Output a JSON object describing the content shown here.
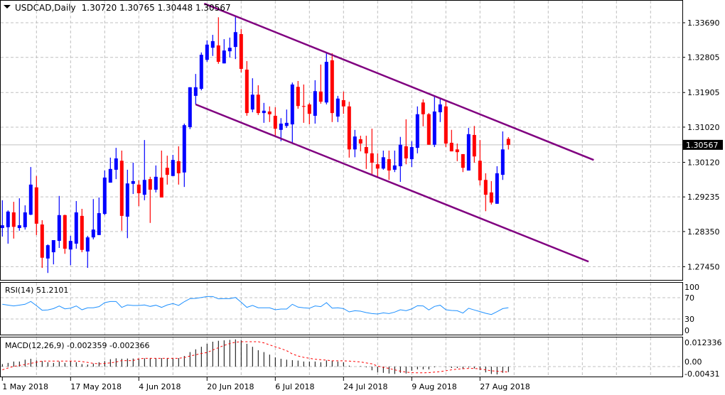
{
  "header": {
    "symbol": "USDCAD,Daily",
    "ohlc": "1.30720 1.30765 1.30448 1.30567"
  },
  "colors": {
    "bull": "#0000FF",
    "bear": "#FF0000",
    "channel": "#800080",
    "rsi": "#1E90FF",
    "macd_hist": "#000000",
    "macd_signal": "#FF0000",
    "grid": "#C0C0C0"
  },
  "chart_data": [
    {
      "type": "candlestick",
      "title": "USDCAD,Daily",
      "current_price": 1.30567,
      "current_price_label": "1.30567",
      "ylim": [
        1.271,
        1.342
      ],
      "y_ticks": [
        "1.33690",
        "1.32805",
        "1.31905",
        "1.31020",
        "1.30120",
        "1.29235",
        "1.28350",
        "1.27450"
      ],
      "x_ticks": [
        {
          "bar": 0,
          "label": "1 May 2018"
        },
        {
          "bar": 12,
          "label": "17 May 2018"
        },
        {
          "bar": 24,
          "label": "4 Jun 2018"
        },
        {
          "bar": 36,
          "label": "20 Jun 2018"
        },
        {
          "bar": 48,
          "label": "6 Jul 2018"
        },
        {
          "bar": 60,
          "label": "24 Jul 2018"
        },
        {
          "bar": 72,
          "label": "9 Aug 2018"
        },
        {
          "bar": 84,
          "label": "27 Aug 2018"
        }
      ],
      "ohlc_order": [
        "open",
        "high",
        "low",
        "close"
      ],
      "ohlc": [
        [
          1.2844,
          1.2915,
          1.2822,
          1.2851
        ],
        [
          1.2846,
          1.2889,
          1.2804,
          1.2886
        ],
        [
          1.2884,
          1.2911,
          1.2817,
          1.2847
        ],
        [
          1.2844,
          1.292,
          1.2837,
          1.2851
        ],
        [
          1.2846,
          1.2902,
          1.284,
          1.2884
        ],
        [
          1.2878,
          1.3,
          1.2877,
          1.2955
        ],
        [
          1.2948,
          1.2977,
          1.2826,
          1.2855
        ],
        [
          1.2853,
          1.2864,
          1.2742,
          1.2768
        ],
        [
          1.2766,
          1.2802,
          1.2729,
          1.28
        ],
        [
          1.2782,
          1.2813,
          1.2751,
          1.2813
        ],
        [
          1.2811,
          1.2926,
          1.2793,
          1.2877
        ],
        [
          1.2877,
          1.2878,
          1.2778,
          1.2791
        ],
        [
          1.2789,
          1.2824,
          1.2749,
          1.2811
        ],
        [
          1.2804,
          1.2913,
          1.2791,
          1.2884
        ],
        [
          1.2875,
          1.2893,
          1.2782,
          1.2788
        ],
        [
          1.2784,
          1.2824,
          1.2742,
          1.282
        ],
        [
          1.282,
          1.2918,
          1.2815,
          1.284
        ],
        [
          1.2826,
          1.2922,
          1.2826,
          1.2882
        ],
        [
          1.288,
          1.2991,
          1.2877,
          1.2973
        ],
        [
          1.296,
          1.3024,
          1.296,
          1.2995
        ],
        [
          1.2993,
          1.3049,
          1.2969,
          1.3022
        ],
        [
          1.3016,
          1.3042,
          1.2837,
          1.2875
        ],
        [
          1.2873,
          1.2993,
          1.2818,
          1.2958
        ],
        [
          1.2957,
          1.3011,
          1.2931,
          1.2964
        ],
        [
          1.2955,
          1.2966,
          1.29,
          1.2933
        ],
        [
          1.2929,
          1.3069,
          1.2915,
          1.2967
        ],
        [
          1.2969,
          1.2975,
          1.2857,
          1.2942
        ],
        [
          1.2942,
          1.3004,
          1.2935,
          1.2975
        ],
        [
          1.2973,
          1.3042,
          1.2922,
          1.2922
        ],
        [
          1.2998,
          1.3029,
          1.2955,
          1.298
        ],
        [
          1.2977,
          1.3031,
          1.2977,
          1.3018
        ],
        [
          1.3015,
          1.3053,
          1.2955,
          1.2984
        ],
        [
          1.2986,
          1.3111,
          1.2949,
          1.3107
        ],
        [
          1.3102,
          1.3204,
          1.3097,
          1.3204
        ],
        [
          1.3182,
          1.3238,
          1.316,
          1.3204
        ],
        [
          1.32,
          1.3293,
          1.3196,
          1.3287
        ],
        [
          1.3274,
          1.3324,
          1.3269,
          1.3313
        ],
        [
          1.3305,
          1.3338,
          1.3284,
          1.3322
        ],
        [
          1.3311,
          1.3383,
          1.3264,
          1.3269
        ],
        [
          1.3265,
          1.3327,
          1.3265,
          1.3298
        ],
        [
          1.3296,
          1.3331,
          1.328,
          1.3305
        ],
        [
          1.3307,
          1.3387,
          1.3276,
          1.3345
        ],
        [
          1.334,
          1.3353,
          1.3242,
          1.3251
        ],
        [
          1.3249,
          1.3271,
          1.3131,
          1.3138
        ],
        [
          1.3147,
          1.3227,
          1.314,
          1.3185
        ],
        [
          1.3185,
          1.3209,
          1.3133,
          1.3138
        ],
        [
          1.3138,
          1.3164,
          1.3113,
          1.3144
        ],
        [
          1.3142,
          1.3155,
          1.3115,
          1.3135
        ],
        [
          1.3131,
          1.3153,
          1.3078,
          1.3098
        ],
        [
          1.3095,
          1.3125,
          1.3066,
          1.3111
        ],
        [
          1.3105,
          1.3147,
          1.31,
          1.3113
        ],
        [
          1.3109,
          1.3216,
          1.306,
          1.3211
        ],
        [
          1.3205,
          1.322,
          1.3149,
          1.3156
        ],
        [
          1.3156,
          1.3211,
          1.3113,
          1.3154
        ],
        [
          1.316,
          1.3164,
          1.3109,
          1.3136
        ],
        [
          1.3131,
          1.3222,
          1.3111,
          1.3194
        ],
        [
          1.3193,
          1.3262,
          1.3162,
          1.3167
        ],
        [
          1.3165,
          1.3291,
          1.316,
          1.3269
        ],
        [
          1.3273,
          1.3291,
          1.3115,
          1.3138
        ],
        [
          1.3129,
          1.3182,
          1.3115,
          1.3175
        ],
        [
          1.3171,
          1.3193,
          1.3136,
          1.3155
        ],
        [
          1.3155,
          1.3167,
          1.3024,
          1.3045
        ],
        [
          1.3045,
          1.3095,
          1.3025,
          1.3078
        ],
        [
          1.3071,
          1.308,
          1.304,
          1.306
        ],
        [
          1.3051,
          1.308,
          1.2995,
          1.3035
        ],
        [
          1.3035,
          1.3098,
          1.2982,
          1.3011
        ],
        [
          1.3007,
          1.3035,
          1.2975,
          1.2996
        ],
        [
          1.2996,
          1.3042,
          1.2993,
          1.3025
        ],
        [
          1.302,
          1.3042,
          1.2967,
          1.2991
        ],
        [
          1.2993,
          1.3042,
          1.2987,
          1.3004
        ],
        [
          1.3002,
          1.3077,
          1.2962,
          1.3057
        ],
        [
          1.3053,
          1.3122,
          1.3007,
          1.3022
        ],
        [
          1.302,
          1.3066,
          1.3,
          1.3051
        ],
        [
          1.3049,
          1.3155,
          1.3035,
          1.3135
        ],
        [
          1.3165,
          1.3173,
          1.3104,
          1.3135
        ],
        [
          1.3135,
          1.3138,
          1.3057,
          1.3057
        ],
        [
          1.3057,
          1.3182,
          1.3051,
          1.3142
        ],
        [
          1.314,
          1.3176,
          1.3115,
          1.316
        ],
        [
          1.3155,
          1.3169,
          1.3051,
          1.306
        ],
        [
          1.3062,
          1.3095,
          1.304,
          1.304
        ],
        [
          1.3045,
          1.306,
          1.3015,
          1.3038
        ],
        [
          1.3033,
          1.3033,
          1.2987,
          1.2998
        ],
        [
          1.2991,
          1.31,
          1.2991,
          1.3084
        ],
        [
          1.3082,
          1.3105,
          1.3011,
          1.3027
        ],
        [
          1.3016,
          1.3069,
          1.2953,
          1.2966
        ],
        [
          1.2967,
          1.2984,
          1.2887,
          1.2929
        ],
        [
          1.2935,
          1.2964,
          1.2904,
          1.2909
        ],
        [
          1.2906,
          1.3002,
          1.2906,
          1.2984
        ],
        [
          1.298,
          1.3091,
          1.2967,
          1.3045
        ],
        [
          1.3072,
          1.30765,
          1.30448,
          1.30567
        ]
      ],
      "trendlines": [
        {
          "name": "channel-upper",
          "from": {
            "bar": 35.5,
            "price": 1.3418
          },
          "to": {
            "bar": 104,
            "price": 1.3018
          }
        },
        {
          "name": "channel-lower",
          "from": {
            "bar": 34,
            "price": 1.316
          },
          "to": {
            "bar": 103.1,
            "price": 1.2758
          }
        }
      ]
    },
    {
      "type": "line",
      "title": "RSI(14)",
      "label": "RSI(14) 51.2101",
      "ylim": [
        0,
        100
      ],
      "y_ticks": [
        "100",
        "70",
        "30",
        "0"
      ],
      "levels": [
        70,
        30
      ],
      "values": [
        57.6,
        56,
        54.5,
        56,
        57.6,
        62.9,
        55,
        46.4,
        47,
        49.5,
        54.5,
        49,
        50.3,
        54.5,
        47.3,
        51,
        51,
        53.2,
        60.7,
        62.9,
        62.9,
        51.8,
        56.3,
        55.4,
        55.4,
        56.3,
        53.6,
        55.9,
        51.8,
        56.3,
        58.9,
        55.4,
        62.5,
        68.2,
        68.7,
        70.4,
        72.2,
        72.2,
        67.8,
        68.2,
        68.2,
        70.4,
        61.5,
        51.8,
        55.4,
        51,
        51,
        51,
        47.3,
        48.6,
        48.6,
        57.6,
        52.3,
        51,
        50.1,
        54.5,
        53.2,
        60.7,
        50.3,
        51,
        49.5,
        43.3,
        45.5,
        44.6,
        42,
        40.2,
        39.3,
        41.5,
        40.2,
        42.9,
        47.3,
        45.5,
        49,
        54.9,
        54.5,
        46.9,
        53.6,
        55.9,
        47.3,
        46,
        45.5,
        41.1,
        50.1,
        46.9,
        43.8,
        40.7,
        38.4,
        43.8,
        49.5,
        51.2101
      ]
    },
    {
      "type": "bar",
      "title": "MACD(12,26,9)",
      "label": "MACD(12,26,9) -0.002359 -0.002366",
      "ylim": [
        -0.00431,
        0.012336
      ],
      "y_ticks": [
        {
          "value": 0.012336,
          "label": "0.012336"
        },
        {
          "value": 0,
          "label": "0.00"
        },
        {
          "value": -0.00431,
          "label": "-0.00431"
        }
      ],
      "series": [
        {
          "name": "MACD",
          "style": "histogram",
          "values": [
            0.0011,
            0.0016,
            0.0022,
            0.0022,
            0.003,
            0.0034,
            0.0027,
            0.0024,
            0.0019,
            0.0016,
            0.0022,
            0.0016,
            0.0024,
            0.0019,
            0.0011,
            0.0009,
            0.0013,
            0.0019,
            0.0024,
            0.0032,
            0.0036,
            0.0034,
            0.0035,
            0.0035,
            0.0034,
            0.0036,
            0.0036,
            0.0037,
            0.0037,
            0.0037,
            0.0037,
            0.0037,
            0.0046,
            0.0063,
            0.0075,
            0.0086,
            0.0099,
            0.0108,
            0.0112,
            0.0114,
            0.0116,
            0.0118,
            0.0114,
            0.0099,
            0.0086,
            0.0071,
            0.0063,
            0.0052,
            0.004,
            0.0034,
            0.003,
            0.0028,
            0.0026,
            0.0022,
            0.0022,
            0.0022,
            0.0019,
            0.0027,
            0.0026,
            0.0022,
            0.0019,
            0.0004,
            0.0,
            0.0002,
            -0.0003,
            -0.0016,
            -0.0025,
            -0.0027,
            -0.003,
            -0.0032,
            -0.0027,
            -0.003,
            -0.0018,
            -0.0012,
            -0.0012,
            -0.0012,
            -0.0003,
            0.0,
            -0.0002,
            -0.0006,
            -0.0006,
            -0.0011,
            -0.0004,
            -0.0008,
            -0.0015,
            -0.0025,
            -0.0032,
            -0.0034,
            -0.0027,
            -0.002359
          ]
        },
        {
          "name": "Signal",
          "style": "dashed-line",
          "values": [
            -0.0014,
            -0.0006,
            0.0001,
            0.0005,
            0.0009,
            0.0014,
            0.0019,
            0.0024,
            0.0024,
            0.0024,
            0.0024,
            0.0024,
            0.0024,
            0.0024,
            0.0022,
            0.0018,
            0.0014,
            0.0012,
            0.0014,
            0.0016,
            0.002,
            0.0026,
            0.0026,
            0.0026,
            0.0034,
            0.0036,
            0.0036,
            0.0036,
            0.0036,
            0.0036,
            0.0036,
            0.0036,
            0.0039,
            0.0046,
            0.0051,
            0.0057,
            0.0061,
            0.0072,
            0.0082,
            0.0092,
            0.01,
            0.0106,
            0.0108,
            0.0108,
            0.0108,
            0.0108,
            0.0103,
            0.0094,
            0.0086,
            0.0078,
            0.0069,
            0.0055,
            0.0046,
            0.004,
            0.0036,
            0.0032,
            0.003,
            0.0028,
            0.0025,
            0.0025,
            0.0025,
            0.0024,
            0.0022,
            0.002,
            0.0016,
            0.0012,
            0.0002,
            -0.0003,
            -0.0008,
            -0.0014,
            -0.002,
            -0.0024,
            -0.0026,
            -0.0027,
            -0.0027,
            -0.0026,
            -0.0024,
            -0.0022,
            -0.0018,
            -0.0014,
            -0.0011,
            -0.0009,
            -0.0008,
            -0.0008,
            -0.001,
            -0.0014,
            -0.0018,
            -0.002,
            -0.0022,
            -0.002366
          ]
        }
      ]
    }
  ]
}
